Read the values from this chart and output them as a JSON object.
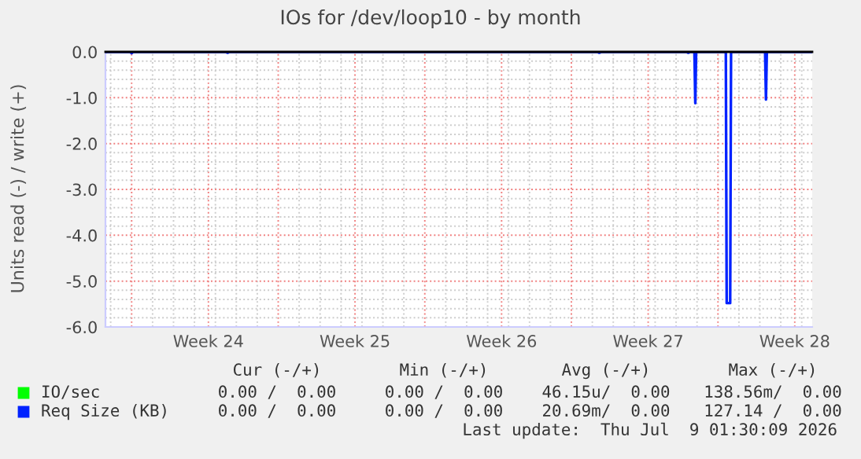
{
  "chart_data": {
    "type": "line",
    "title": "IOs for /dev/loop10 - by month",
    "ylabel": "Units read (-) / write (+)",
    "xlim": [
      "2026-06-06T18:00",
      "2026-07-10T12:00"
    ],
    "ylim": [
      -6.0,
      0.0
    ],
    "xticks": [
      {
        "value": "2026-06-08",
        "label": null
      },
      {
        "value": "2026-06-11T16:00",
        "label": "Week 24"
      },
      {
        "value": "2026-06-15",
        "label": null
      },
      {
        "value": "2026-06-18T16:00",
        "label": "Week 25"
      },
      {
        "value": "2026-06-22",
        "label": null
      },
      {
        "value": "2026-06-25T16:00",
        "label": "Week 26"
      },
      {
        "value": "2026-06-29",
        "label": null
      },
      {
        "value": "2026-07-02T16:00",
        "label": "Week 27"
      },
      {
        "value": "2026-07-06",
        "label": null
      },
      {
        "value": "2026-07-09T16:00",
        "label": "Week 28"
      }
    ],
    "yticks": [
      {
        "value": 0,
        "label": "0.0"
      },
      {
        "value": -1,
        "label": "-1.0"
      },
      {
        "value": -2,
        "label": "-2.0"
      },
      {
        "value": -3,
        "label": "-3.0"
      },
      {
        "value": -4,
        "label": "-4.0"
      },
      {
        "value": -5,
        "label": "-5.0"
      },
      {
        "value": -6,
        "label": "-6.0"
      }
    ],
    "grid": true,
    "legend": "bottom",
    "ref_lines": [
      {
        "axis": "y",
        "value": 0,
        "color": "#000000"
      }
    ],
    "series": [
      {
        "name": "IO/sec",
        "color": "#00ff00"
      },
      {
        "name": "Req Size (KB)",
        "color": "#0022ff",
        "x": [
          "2026-06-06T18:00",
          "2026-06-07T22:00",
          "2026-06-08T00:00",
          "2026-06-08T02:00",
          "2026-06-12T12:00",
          "2026-06-12T14:00",
          "2026-06-12T16:00",
          "2026-06-30T06:00",
          "2026-06-30T08:00",
          "2026-06-30T10:00",
          "2026-07-04T12:00",
          "2026-07-04T14:00",
          "2026-07-04T16:00",
          "2026-07-04T21:00",
          "2026-07-04T22:00",
          "2026-07-04T23:00",
          "2026-07-06T09:00",
          "2026-07-06T10:00",
          "2026-07-06T14:00",
          "2026-07-06T15:00",
          "2026-07-08T06:00",
          "2026-07-08T07:00",
          "2026-07-08T08:00",
          "2026-07-10T12:00"
        ],
        "values": [
          0,
          0,
          -0.03,
          0,
          0,
          -0.02,
          0,
          0,
          -0.02,
          0,
          0,
          -0.02,
          0,
          0,
          -1.12,
          0,
          0,
          -5.48,
          -5.48,
          0,
          0,
          -1.04,
          0,
          0
        ]
      }
    ],
    "annotations": [
      "Cur (-/+)",
      "Min (-/+)",
      "Avg (-/+)",
      "Max (-/+)",
      "0.00 /  0.00",
      "0.00 /  0.00",
      "46.15u/  0.00",
      "138.56m/  0.00",
      "0.00 /  0.00",
      "0.00 /  0.00",
      "20.69m/  0.00",
      "127.14 /  0.00",
      "Last update:  Thu Jul  9 01:30:09 2026"
    ]
  }
}
